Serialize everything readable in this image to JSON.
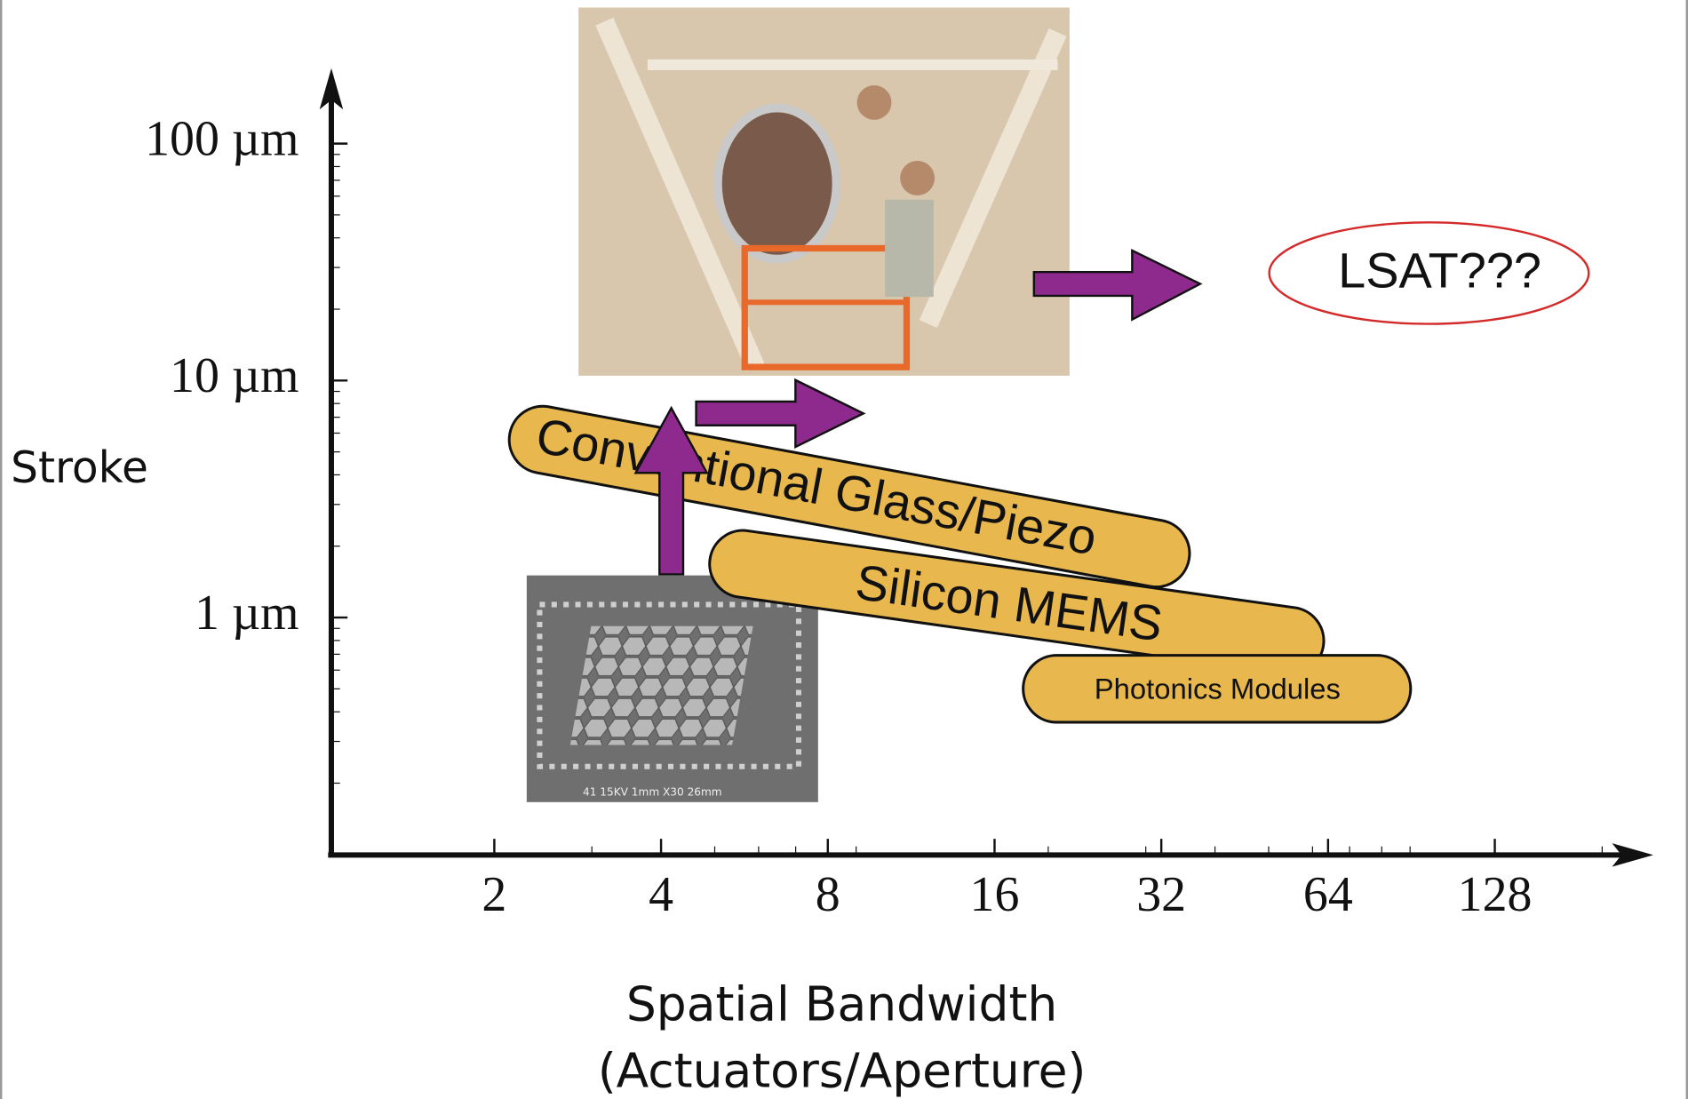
{
  "y_axis": {
    "label": "Stroke",
    "ticks": [
      "100 µm",
      "10 µm",
      "1 µm"
    ]
  },
  "x_axis": {
    "label_line1": "Spatial Bandwidth",
    "label_line2": "(Actuators/Aperture)",
    "ticks": [
      "2",
      "4",
      "8",
      "16",
      "32",
      "64",
      "128"
    ]
  },
  "regions": [
    "Conventional Glass/Piezo",
    "Silicon MEMS",
    "Photonics Modules"
  ],
  "target": "LSAT???",
  "sem_caption": "41 15KV 1mm X30 26mm"
}
